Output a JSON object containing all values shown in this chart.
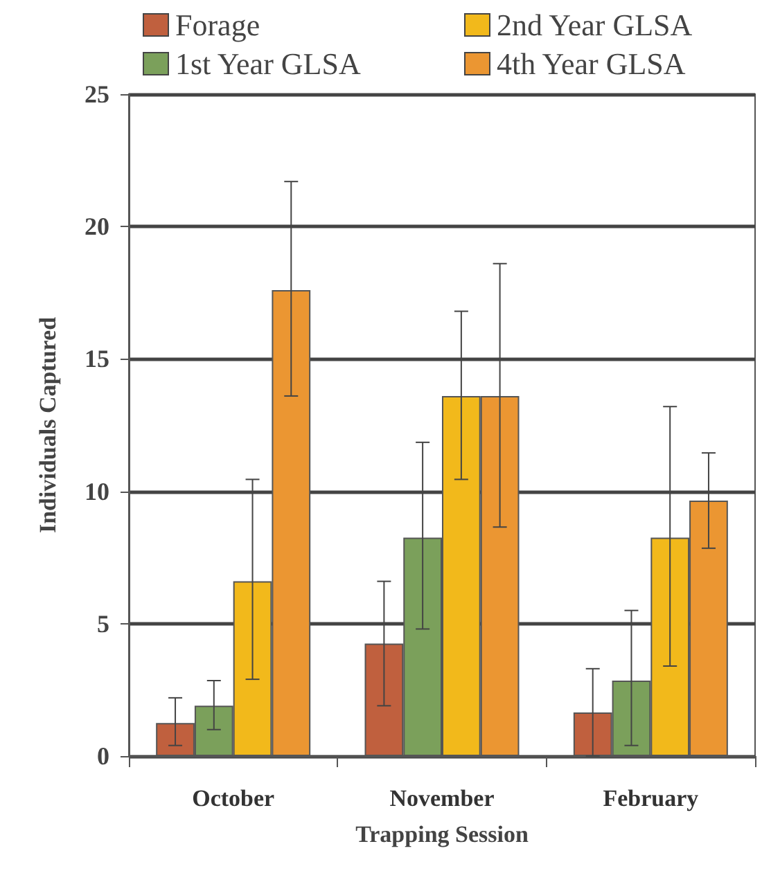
{
  "chart_data": {
    "type": "bar",
    "xlabel": "Trapping Session",
    "ylabel": "Individuals Captured",
    "categories": [
      "October",
      "November",
      "February"
    ],
    "series": [
      {
        "name": "Forage",
        "color": "#c0603e",
        "values": [
          1.25,
          4.25,
          1.65
        ],
        "errors": [
          [
            0.4,
            2.2
          ],
          [
            1.9,
            6.6
          ],
          [
            0,
            3.3
          ]
        ]
      },
      {
        "name": "1st Year GLSA",
        "color": "#7ba05b",
        "values": [
          1.9,
          8.25,
          2.85
        ],
        "errors": [
          [
            1,
            2.85
          ],
          [
            4.8,
            11.85
          ],
          [
            0.4,
            5.5
          ]
        ]
      },
      {
        "name": "2nd Year GLSA",
        "color": "#f2b91b",
        "values": [
          6.6,
          13.6,
          8.25
        ],
        "errors": [
          [
            2.9,
            10.45
          ],
          [
            10.45,
            16.8
          ],
          [
            3.4,
            13.2
          ]
        ]
      },
      {
        "name": "4th Year GLSA",
        "color": "#eb9632",
        "values": [
          17.6,
          13.6,
          9.65
        ],
        "errors": [
          [
            13.6,
            21.7
          ],
          [
            8.65,
            18.6
          ],
          [
            7.85,
            11.45
          ]
        ]
      }
    ],
    "ylim": [
      0,
      25
    ],
    "yticks": [
      0,
      5,
      10,
      15,
      20,
      25
    ],
    "grid": "y",
    "legend": "top"
  }
}
